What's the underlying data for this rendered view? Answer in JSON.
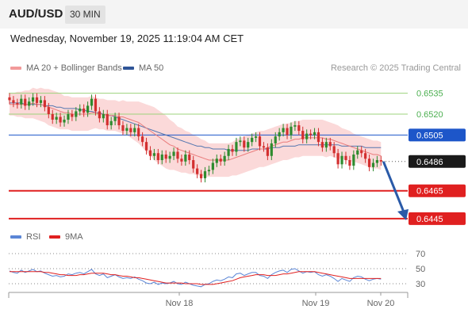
{
  "header": {
    "symbol": "AUD/USD",
    "timeframe": "30 MIN"
  },
  "datetime": "Wednesday, November 19, 2025 11:19:04 AM CET",
  "legend": {
    "ma20": "MA 20 + Bollinger Bands",
    "ma50": "MA 50",
    "credit": "Research © 2025 Trading Central"
  },
  "rsi_legend": {
    "rsi": "RSI",
    "ma": "9MA"
  },
  "colors": {
    "bull": "#2e8b2e",
    "bear": "#d32f2f",
    "ma20": "#e97c7c",
    "ma50": "#5577b0",
    "band": "#fbd9d9",
    "resistance": "#9cd37c",
    "pivot": "#1d56c9",
    "support": "#e02020",
    "rsi": "#5b86d6",
    "rsi_ma": "#e02020"
  },
  "chart_data": [
    {
      "type": "candlestick",
      "y_unit": "price",
      "ylim": [
        0.6437,
        0.6545
      ],
      "x_ticks": [
        "Nov 18",
        "Nov 19",
        "Nov 20"
      ],
      "levels": [
        {
          "label": "0.6535",
          "value": 0.6535,
          "kind": "resistance"
        },
        {
          "label": "0.6520",
          "value": 0.652,
          "kind": "resistance"
        },
        {
          "label": "0.6505",
          "value": 0.6505,
          "kind": "pivot"
        },
        {
          "label": "0.6486",
          "value": 0.6486,
          "kind": "current"
        },
        {
          "label": "0.6465",
          "value": 0.6465,
          "kind": "support"
        },
        {
          "label": "0.6445",
          "value": 0.6445,
          "kind": "support"
        }
      ],
      "close": [
        0.653,
        0.6528,
        0.6527,
        0.6531,
        0.6526,
        0.6529,
        0.6532,
        0.6528,
        0.653,
        0.6525,
        0.652,
        0.6516,
        0.6518,
        0.6514,
        0.6516,
        0.652,
        0.6518,
        0.6522,
        0.6524,
        0.6521,
        0.6526,
        0.6531,
        0.6522,
        0.6517,
        0.652,
        0.6512,
        0.6515,
        0.6518,
        0.6512,
        0.6508,
        0.651,
        0.6507,
        0.651,
        0.6504,
        0.65,
        0.6494,
        0.649,
        0.6492,
        0.6487,
        0.6491,
        0.6488,
        0.649,
        0.6493,
        0.6488,
        0.6486,
        0.6491,
        0.6487,
        0.6481,
        0.6477,
        0.6474,
        0.6479,
        0.648,
        0.6485,
        0.6488,
        0.6486,
        0.649,
        0.6495,
        0.6493,
        0.65,
        0.6501,
        0.6496,
        0.65,
        0.6503,
        0.6504,
        0.6497,
        0.6496,
        0.649,
        0.6499,
        0.6504,
        0.6507,
        0.651,
        0.6505,
        0.6511,
        0.6512,
        0.6508,
        0.6502,
        0.6506,
        0.6505,
        0.6507,
        0.65,
        0.6496,
        0.65,
        0.6497,
        0.6492,
        0.6484,
        0.649,
        0.6487,
        0.6483,
        0.6491,
        0.6494,
        0.6492,
        0.6488,
        0.6482,
        0.6485,
        0.6487,
        0.6486
      ],
      "ma20": [
        0.6527,
        0.6527,
        0.6527,
        0.6527,
        0.6527,
        0.6527,
        0.6528,
        0.6527,
        0.6527,
        0.6526,
        0.6525,
        0.6524,
        0.6523,
        0.6522,
        0.6521,
        0.6521,
        0.652,
        0.652,
        0.652,
        0.652,
        0.652,
        0.6521,
        0.6521,
        0.652,
        0.652,
        0.6519,
        0.6519,
        0.6519,
        0.6518,
        0.6518,
        0.6517,
        0.6516,
        0.6515,
        0.6514,
        0.6512,
        0.651,
        0.6508,
        0.6506,
        0.6504,
        0.6502,
        0.65,
        0.6498,
        0.6497,
        0.6495,
        0.6494,
        0.6493,
        0.6492,
        0.6491,
        0.649,
        0.6489,
        0.6488,
        0.6487,
        0.6487,
        0.6487,
        0.6487,
        0.6487,
        0.6487,
        0.6488,
        0.6489,
        0.649,
        0.6491,
        0.6492,
        0.6493,
        0.6494,
        0.6495,
        0.6495,
        0.6496,
        0.6497,
        0.6498,
        0.6499,
        0.65,
        0.65,
        0.6501,
        0.6502,
        0.6502,
        0.6503,
        0.6503,
        0.6503,
        0.6503,
        0.6503,
        0.6503,
        0.6502,
        0.6502,
        0.6501,
        0.65,
        0.6499,
        0.6498,
        0.6497,
        0.6496,
        0.6495,
        0.6494,
        0.6493,
        0.6492,
        0.6491,
        0.6491,
        0.649
      ],
      "ma50": [
        0.6528,
        0.6528,
        0.6528,
        0.6528,
        0.6527,
        0.6527,
        0.6527,
        0.6527,
        0.6527,
        0.6526,
        0.6526,
        0.6526,
        0.6525,
        0.6525,
        0.6524,
        0.6524,
        0.6524,
        0.6524,
        0.6523,
        0.6523,
        0.6522,
        0.6522,
        0.6521,
        0.6521,
        0.652,
        0.6519,
        0.6519,
        0.6518,
        0.6517,
        0.6516,
        0.6515,
        0.6514,
        0.6513,
        0.6512,
        0.6511,
        0.651,
        0.6509,
        0.6508,
        0.6507,
        0.6506,
        0.6505,
        0.6504,
        0.6503,
        0.6502,
        0.6501,
        0.65,
        0.6499,
        0.6498,
        0.6497,
        0.6497,
        0.6496,
        0.6496,
        0.6495,
        0.6495,
        0.6495,
        0.6495,
        0.6494,
        0.6494,
        0.6494,
        0.6494,
        0.6494,
        0.6494,
        0.6495,
        0.6495,
        0.6495,
        0.6495,
        0.6495,
        0.6496,
        0.6496,
        0.6496,
        0.6497,
        0.6497,
        0.6497,
        0.6497,
        0.6498,
        0.6498,
        0.6498,
        0.6498,
        0.6498,
        0.6498,
        0.6498,
        0.6498,
        0.6498,
        0.6498,
        0.6498,
        0.6497,
        0.6497,
        0.6497,
        0.6497,
        0.6497,
        0.6497,
        0.6496,
        0.6496,
        0.6496,
        0.6496,
        0.6496
      ],
      "band_width": [
        0.0008,
        0.0008,
        0.0009,
        0.0009,
        0.001,
        0.001,
        0.0011,
        0.0011,
        0.0012,
        0.0012,
        0.0013,
        0.0013,
        0.0013,
        0.0013,
        0.0012,
        0.0012,
        0.0012,
        0.0012,
        0.0012,
        0.0012,
        0.0012,
        0.0012,
        0.0011,
        0.0011,
        0.0011,
        0.0011,
        0.0011,
        0.0011,
        0.0011,
        0.0012,
        0.0012,
        0.0013,
        0.0014,
        0.0015,
        0.0016,
        0.0017,
        0.0018,
        0.0019,
        0.0019,
        0.0019,
        0.0019,
        0.0018,
        0.0017,
        0.0016,
        0.0016,
        0.0015,
        0.0015,
        0.0014,
        0.0014,
        0.0013,
        0.0013,
        0.0012,
        0.0012,
        0.0012,
        0.0012,
        0.0012,
        0.0012,
        0.0012,
        0.0013,
        0.0013,
        0.0013,
        0.0013,
        0.0013,
        0.0013,
        0.0013,
        0.0013,
        0.0013,
        0.0013,
        0.0013,
        0.0013,
        0.0013,
        0.0013,
        0.0013,
        0.0013,
        0.0013,
        0.0013,
        0.0013,
        0.0013,
        0.0013,
        0.0013,
        0.0013,
        0.0013,
        0.0012,
        0.0012,
        0.0012,
        0.0011,
        0.0011,
        0.0011,
        0.001,
        0.001,
        0.001,
        0.001,
        0.001,
        0.001,
        0.001,
        0.001
      ],
      "forecast": {
        "from": 0.6486,
        "to": 0.6445
      }
    },
    {
      "type": "line",
      "y_ticks": [
        "70",
        "50",
        "30"
      ],
      "ylim": [
        20,
        80
      ],
      "series": [
        {
          "name": "RSI",
          "values": [
            47,
            45,
            44,
            48,
            45,
            47,
            49,
            46,
            47,
            44,
            42,
            40,
            41,
            39,
            40,
            43,
            42,
            44,
            45,
            43,
            46,
            49,
            43,
            41,
            43,
            38,
            40,
            42,
            39,
            37,
            38,
            37,
            39,
            36,
            34,
            31,
            30,
            32,
            29,
            31,
            30,
            31,
            33,
            30,
            29,
            32,
            30,
            28,
            27,
            26,
            29,
            30,
            33,
            35,
            34,
            36,
            39,
            38,
            43,
            44,
            41,
            43,
            45,
            45,
            41,
            40,
            37,
            42,
            45,
            47,
            48,
            45,
            49,
            50,
            47,
            44,
            46,
            45,
            46,
            42,
            40,
            42,
            40,
            37,
            33,
            37,
            35,
            33,
            38,
            40,
            39,
            36,
            34,
            36,
            37,
            36
          ]
        },
        {
          "name": "9MA",
          "values": [
            46,
            46,
            46,
            46,
            46,
            46,
            46,
            46,
            46,
            45,
            45,
            44,
            43,
            42,
            42,
            41,
            41,
            41,
            42,
            42,
            43,
            44,
            44,
            44,
            44,
            43,
            42,
            42,
            41,
            40,
            40,
            39,
            38,
            38,
            37,
            36,
            35,
            34,
            33,
            32,
            31,
            31,
            31,
            31,
            31,
            30,
            30,
            30,
            30,
            29,
            29,
            29,
            29,
            30,
            31,
            32,
            33,
            34,
            36,
            38,
            39,
            40,
            41,
            42,
            42,
            42,
            41,
            41,
            41,
            42,
            43,
            43,
            44,
            45,
            46,
            46,
            46,
            46,
            46,
            45,
            44,
            43,
            42,
            41,
            40,
            39,
            38,
            37,
            37,
            37,
            37,
            37,
            37,
            37,
            37,
            37
          ]
        }
      ]
    }
  ]
}
